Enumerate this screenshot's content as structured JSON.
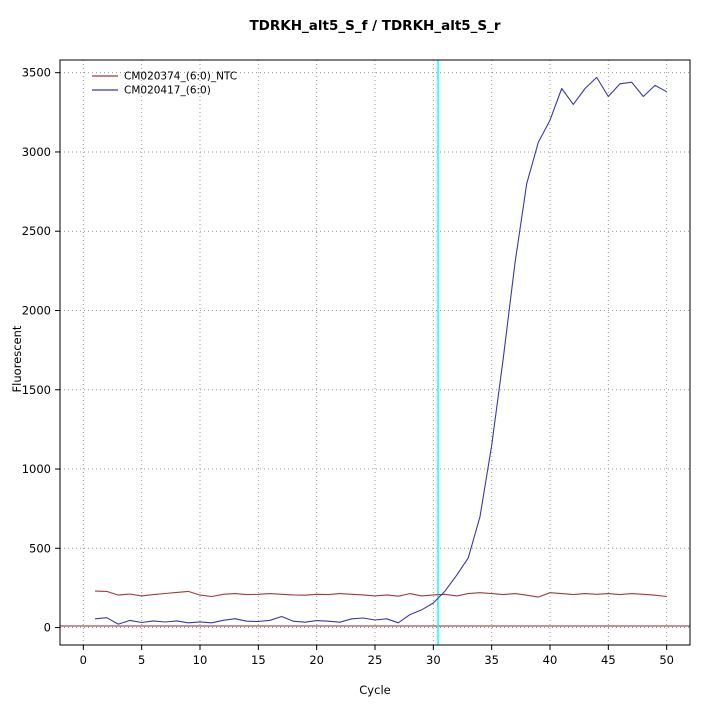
{
  "chart_data": {
    "type": "line",
    "title": "TDRKH_alt5_S_f / TDRKH_alt5_S_r",
    "xlabel": "Cycle",
    "ylabel": "Fluorescent",
    "xlim": [
      -2,
      52
    ],
    "ylim": [
      -110,
      3580
    ],
    "x_ticks": [
      0,
      5,
      10,
      15,
      20,
      25,
      30,
      35,
      40,
      45,
      50
    ],
    "y_ticks": [
      0,
      500,
      1000,
      1500,
      2000,
      2500,
      3000,
      3500
    ],
    "grid": true,
    "legend_position": "top-left",
    "threshold_cycle_line": {
      "x": 30.4,
      "color": "#00ffff"
    },
    "baseline_line": {
      "y": 10,
      "color": "#8b2525"
    },
    "x": [
      1,
      2,
      3,
      4,
      5,
      6,
      7,
      8,
      9,
      10,
      11,
      12,
      13,
      14,
      15,
      16,
      17,
      18,
      19,
      20,
      21,
      22,
      23,
      24,
      25,
      26,
      27,
      28,
      29,
      30,
      31,
      32,
      33,
      34,
      35,
      36,
      37,
      38,
      39,
      40,
      41,
      42,
      43,
      44,
      45,
      46,
      47,
      48,
      49,
      50
    ],
    "series": [
      {
        "name": "CM020374_(6:0)_NTC",
        "color": "#a03c3c",
        "values": [
          230,
          228,
          205,
          212,
          200,
          208,
          215,
          222,
          228,
          205,
          196,
          210,
          214,
          208,
          210,
          214,
          210,
          206,
          204,
          210,
          208,
          214,
          210,
          206,
          200,
          206,
          198,
          214,
          200,
          206,
          210,
          200,
          214,
          220,
          214,
          208,
          214,
          204,
          192,
          220,
          214,
          208,
          214,
          210,
          214,
          208,
          214,
          210,
          204,
          196
        ]
      },
      {
        "name": "CM020417_(6:0)",
        "color": "#3939a8",
        "values": [
          55,
          62,
          22,
          45,
          32,
          42,
          35,
          42,
          30,
          36,
          30,
          46,
          56,
          40,
          38,
          46,
          70,
          40,
          34,
          44,
          40,
          34,
          55,
          60,
          48,
          55,
          30,
          82,
          112,
          155,
          230,
          330,
          440,
          700,
          1150,
          1700,
          2300,
          2800,
          3060,
          3200,
          3400,
          3300,
          3400,
          3470,
          3350,
          3430,
          3440,
          3350,
          3420,
          3380
        ]
      }
    ]
  }
}
